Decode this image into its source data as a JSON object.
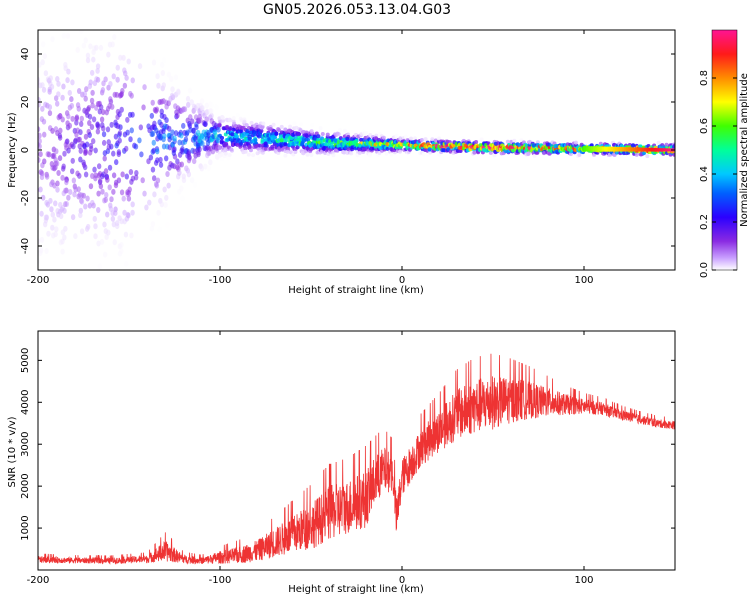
{
  "title": "GN05.2026.053.13.04.G03",
  "chart_data": [
    {
      "type": "heatmap",
      "title": "GN05.2026.053.13.04.G03",
      "xlabel": "Height of straight line (km)",
      "ylabel": "Frequency (Hz)",
      "xlim": [
        -200,
        150
      ],
      "ylim": [
        -50,
        50
      ],
      "xticks": [
        -200,
        -100,
        0,
        100
      ],
      "yticks": [
        -40,
        -20,
        0,
        20,
        40
      ],
      "grid": false,
      "colorbar": {
        "label": "Normalized spectral amplitude",
        "range": [
          0,
          1
        ],
        "ticks": [
          "0.0",
          "0.2",
          "0.4",
          "0.6",
          "0.8"
        ],
        "colors": [
          "#ffffff",
          "#9b30ff",
          "#5a00e0",
          "#0000ff",
          "#00c8ff",
          "#00ff7f",
          "#7fff00",
          "#ffff00",
          "#ff7f00",
          "#ff0000",
          "#ff1493"
        ]
      },
      "ridge": [
        {
          "x": -200,
          "f": 0,
          "width": 50
        },
        {
          "x": -150,
          "f": 3,
          "width": 45
        },
        {
          "x": -120,
          "f": 5,
          "width": 20
        },
        {
          "x": -100,
          "f": 6,
          "width": 8
        },
        {
          "x": -80,
          "f": 5,
          "width": 7
        },
        {
          "x": -60,
          "f": 4,
          "width": 6
        },
        {
          "x": -40,
          "f": 3,
          "width": 5
        },
        {
          "x": -20,
          "f": 2.5,
          "width": 4
        },
        {
          "x": 0,
          "f": 2,
          "width": 3
        },
        {
          "x": 50,
          "f": 1,
          "width": 2.5
        },
        {
          "x": 100,
          "f": 0.5,
          "width": 2
        },
        {
          "x": 150,
          "f": 0,
          "width": 2
        }
      ],
      "peak_amplitude": [
        {
          "x": -200,
          "a": 0.1
        },
        {
          "x": -140,
          "a": 0.3
        },
        {
          "x": -100,
          "a": 0.4
        },
        {
          "x": -60,
          "a": 0.5
        },
        {
          "x": -30,
          "a": 0.6
        },
        {
          "x": 0,
          "a": 0.75
        },
        {
          "x": 20,
          "a": 0.95
        },
        {
          "x": 60,
          "a": 1.0
        },
        {
          "x": 100,
          "a": 0.8
        },
        {
          "x": 150,
          "a": 0.95
        }
      ]
    },
    {
      "type": "line",
      "xlabel": "Height of straight line (km)",
      "ylabel": "SNR (10 * v/v)",
      "xlim": [
        -200,
        150
      ],
      "ylim": [
        0,
        5700
      ],
      "xticks": [
        -200,
        -100,
        0,
        100
      ],
      "yticks": [
        1000,
        2000,
        3000,
        4000,
        5000
      ],
      "grid": false,
      "series": [
        {
          "color": "#ee3333",
          "x": [
            -200,
            -180,
            -160,
            -140,
            -130,
            -120,
            -110,
            -100,
            -90,
            -80,
            -70,
            -60,
            -50,
            -40,
            -30,
            -20,
            -15,
            -10,
            -5,
            -3,
            0,
            10,
            20,
            30,
            40,
            50,
            60,
            70,
            80,
            90,
            100,
            110,
            120,
            130,
            140,
            150
          ],
          "values": [
            250,
            230,
            220,
            260,
            450,
            260,
            220,
            300,
            350,
            450,
            650,
            850,
            1050,
            1350,
            1500,
            1700,
            2100,
            2400,
            2300,
            1200,
            2200,
            2900,
            3300,
            3700,
            3900,
            4000,
            4050,
            4050,
            4000,
            3950,
            3900,
            3850,
            3700,
            3600,
            3500,
            3450
          ],
          "noise": [
            80,
            70,
            70,
            90,
            250,
            100,
            80,
            150,
            200,
            250,
            350,
            450,
            550,
            650,
            650,
            700,
            600,
            550,
            450,
            500,
            450,
            450,
            500,
            600,
            650,
            650,
            550,
            450,
            350,
            250,
            180,
            150,
            130,
            110,
            100,
            100
          ]
        }
      ]
    }
  ]
}
